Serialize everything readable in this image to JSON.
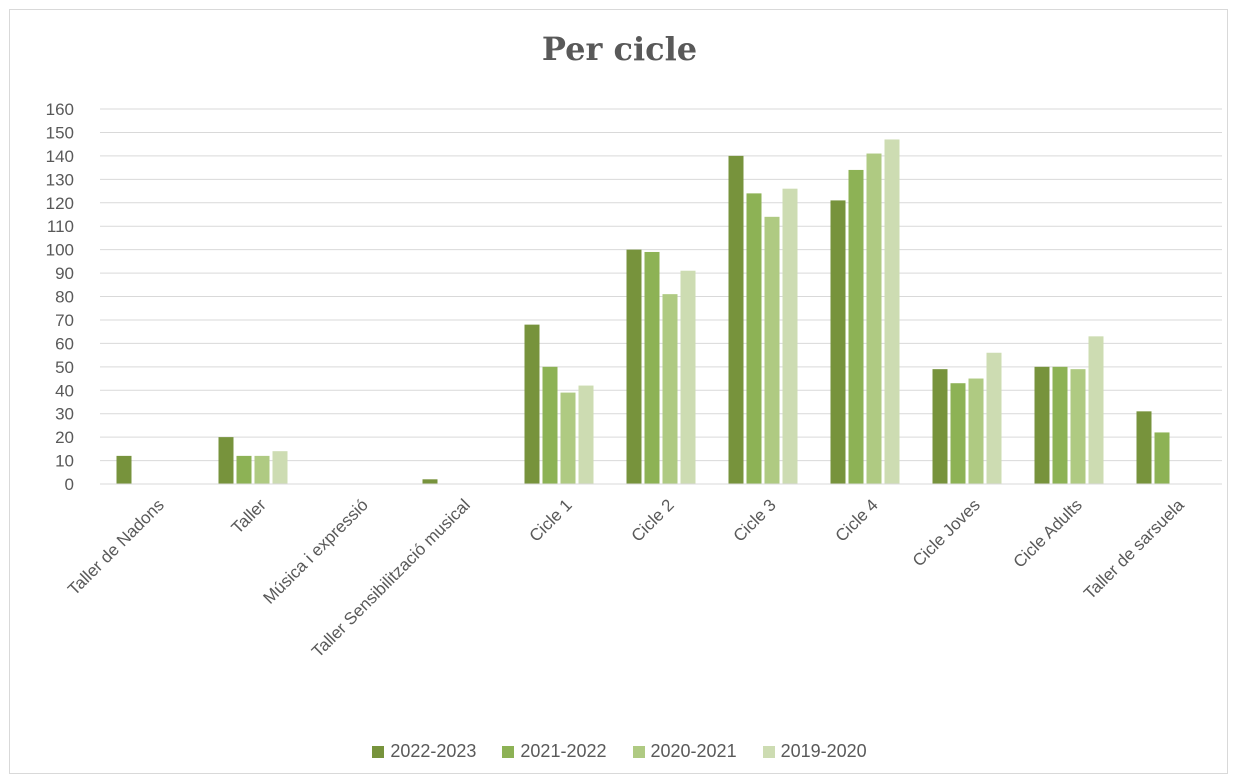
{
  "chart_data": {
    "type": "bar",
    "title": "Per cicle",
    "categories": [
      "Taller de Nadons",
      "Taller",
      "Música i expressió",
      "Taller Sensibilització musical",
      "Cicle 1",
      "Cicle 2",
      "Cicle 3",
      "Cicle 4",
      "Cicle Joves",
      "Cicle Adults",
      "Taller de sarsuela"
    ],
    "series": [
      {
        "name": "2022-2023",
        "color": "#77933c",
        "values": [
          12,
          20,
          0,
          2,
          68,
          100,
          140,
          121,
          49,
          50,
          31
        ]
      },
      {
        "name": "2021-2022",
        "color": "#8db255",
        "values": [
          0,
          12,
          0,
          0,
          50,
          99,
          124,
          134,
          43,
          50,
          22
        ]
      },
      {
        "name": "2020-2021",
        "color": "#afca82",
        "values": [
          0,
          12,
          0,
          0,
          39,
          81,
          114,
          141,
          45,
          49,
          0
        ]
      },
      {
        "name": "2019-2020",
        "color": "#cddcb2",
        "values": [
          0,
          14,
          0,
          0,
          42,
          91,
          126,
          147,
          56,
          63,
          0
        ]
      }
    ],
    "ylim": [
      0,
      160
    ],
    "yticks": [
      0,
      10,
      20,
      30,
      40,
      50,
      60,
      70,
      80,
      90,
      100,
      110,
      120,
      130,
      140,
      150,
      160
    ],
    "grid": true,
    "legend_position": "bottom"
  }
}
